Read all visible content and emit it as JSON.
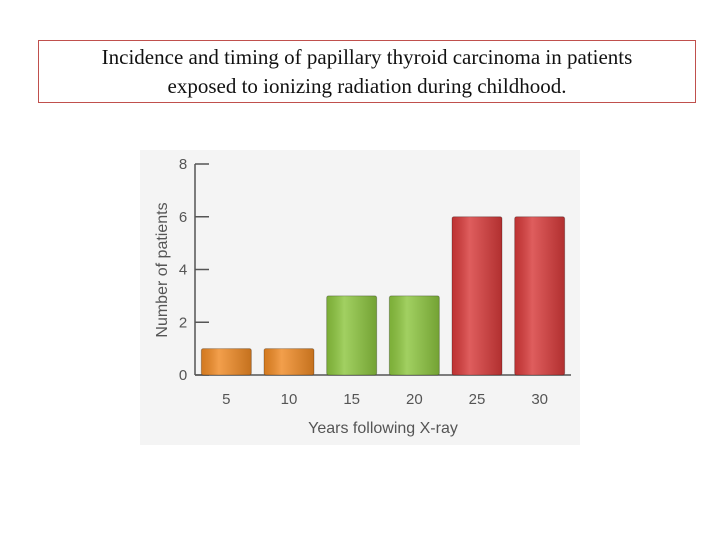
{
  "slide": {
    "title_line1": "Incidence and timing of papillary thyroid carcinoma in patients",
    "title_line2": "exposed to ionizing radiation during childhood."
  },
  "chart_data": {
    "type": "bar",
    "categories": [
      "5",
      "10",
      "15",
      "20",
      "25",
      "30"
    ],
    "values": [
      1,
      1,
      3,
      3,
      6,
      6
    ],
    "bar_colors": [
      "#f08a24",
      "#f08a24",
      "#8dc63f",
      "#8dc63f",
      "#d83a3a",
      "#d83a3a"
    ],
    "xlabel": "Years following X-ray",
    "ylabel": "Number of patients",
    "ylim": [
      0,
      8
    ],
    "yticks": [
      "0",
      "2",
      "4",
      "6",
      "8"
    ],
    "grid": false
  }
}
